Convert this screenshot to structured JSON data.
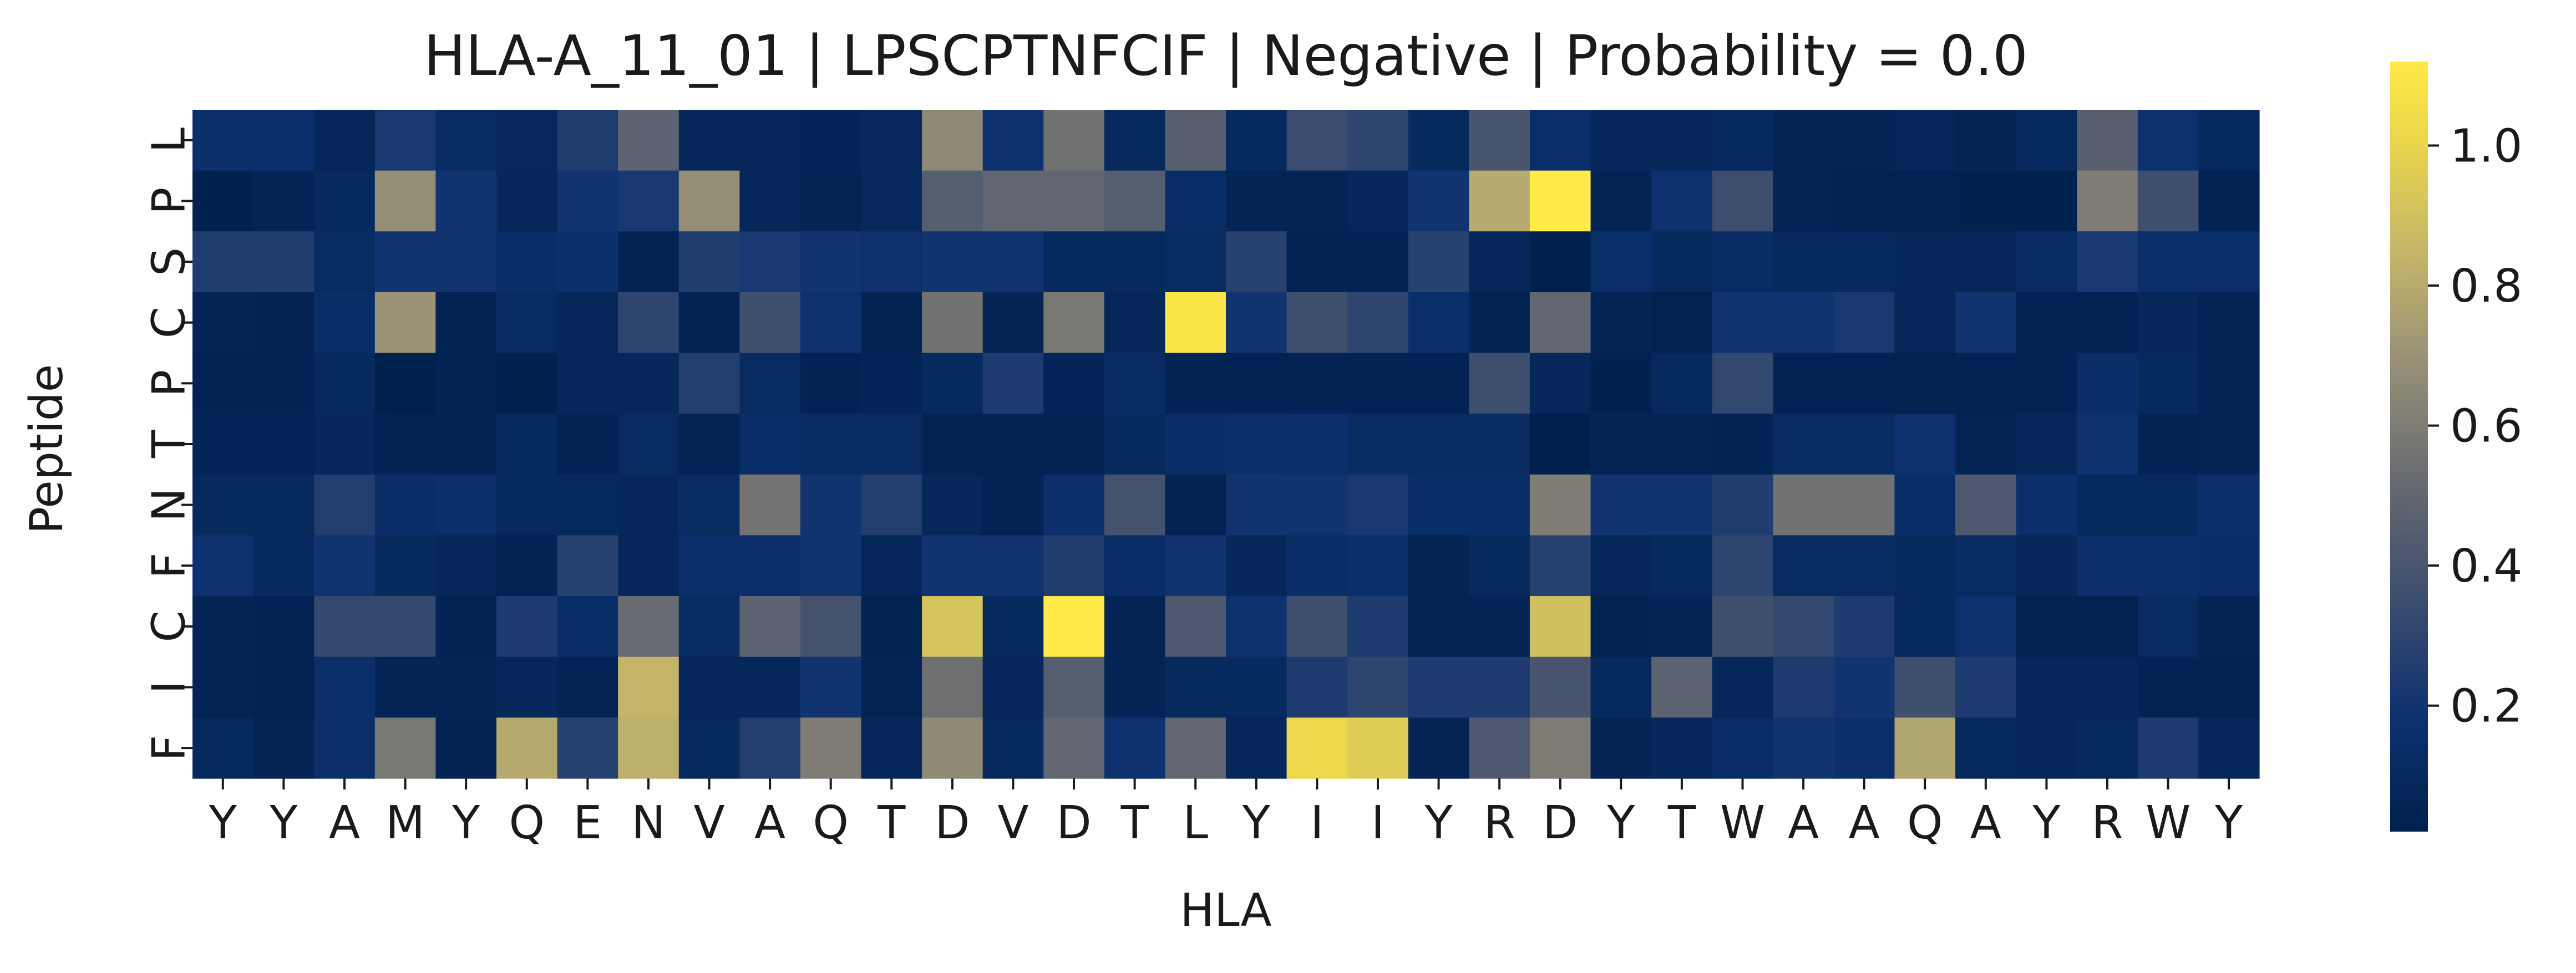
{
  "chart_data": {
    "type": "heatmap",
    "title": "HLA-A_11_01 | LPSCPTNFCIF | Negative | Probability = 0.0",
    "xlabel": "HLA",
    "ylabel": "Peptide",
    "x_categories": [
      "Y",
      "Y",
      "A",
      "M",
      "Y",
      "Q",
      "E",
      "N",
      "V",
      "A",
      "Q",
      "T",
      "D",
      "V",
      "D",
      "T",
      "L",
      "Y",
      "I",
      "I",
      "Y",
      "R",
      "D",
      "Y",
      "T",
      "W",
      "A",
      "A",
      "Q",
      "A",
      "Y",
      "R",
      "W",
      "Y"
    ],
    "y_categories": [
      "L",
      "P",
      "S",
      "C",
      "P",
      "T",
      "N",
      "F",
      "C",
      "I",
      "F"
    ],
    "colormap": "cividis",
    "vmin": 0.02,
    "vmax": 1.12,
    "colorbar_ticks": [
      {
        "value": 0.2,
        "label": "0.2"
      },
      {
        "value": 0.4,
        "label": "0.4"
      },
      {
        "value": 0.6,
        "label": "0.6"
      },
      {
        "value": 0.8,
        "label": "0.8"
      },
      {
        "value": 1.0,
        "label": "1.0"
      }
    ],
    "values": [
      [
        0.17,
        0.17,
        0.08,
        0.22,
        0.12,
        0.09,
        0.25,
        0.48,
        0.08,
        0.08,
        0.07,
        0.09,
        0.66,
        0.18,
        0.55,
        0.1,
        0.46,
        0.1,
        0.34,
        0.3,
        0.1,
        0.4,
        0.15,
        0.08,
        0.08,
        0.1,
        0.06,
        0.06,
        0.08,
        0.06,
        0.1,
        0.46,
        0.18,
        0.1
      ],
      [
        0.03,
        0.06,
        0.1,
        0.68,
        0.2,
        0.08,
        0.2,
        0.22,
        0.68,
        0.08,
        0.06,
        0.09,
        0.45,
        0.5,
        0.5,
        0.45,
        0.14,
        0.06,
        0.06,
        0.08,
        0.2,
        0.8,
        1.12,
        0.06,
        0.18,
        0.35,
        0.06,
        0.04,
        0.04,
        0.03,
        0.03,
        0.6,
        0.36,
        0.05
      ],
      [
        0.25,
        0.25,
        0.12,
        0.2,
        0.2,
        0.14,
        0.17,
        0.05,
        0.25,
        0.22,
        0.2,
        0.18,
        0.2,
        0.2,
        0.1,
        0.1,
        0.12,
        0.28,
        0.05,
        0.05,
        0.28,
        0.08,
        0.02,
        0.15,
        0.1,
        0.12,
        0.1,
        0.1,
        0.08,
        0.08,
        0.12,
        0.22,
        0.15,
        0.16
      ],
      [
        0.06,
        0.05,
        0.14,
        0.7,
        0.05,
        0.12,
        0.08,
        0.3,
        0.05,
        0.36,
        0.18,
        0.05,
        0.55,
        0.06,
        0.58,
        0.08,
        1.1,
        0.2,
        0.36,
        0.3,
        0.16,
        0.05,
        0.5,
        0.06,
        0.04,
        0.2,
        0.2,
        0.22,
        0.08,
        0.2,
        0.05,
        0.05,
        0.08,
        0.06
      ],
      [
        0.05,
        0.05,
        0.1,
        0.02,
        0.05,
        0.03,
        0.08,
        0.08,
        0.26,
        0.12,
        0.05,
        0.07,
        0.1,
        0.24,
        0.07,
        0.12,
        0.05,
        0.05,
        0.05,
        0.05,
        0.05,
        0.35,
        0.08,
        0.03,
        0.1,
        0.32,
        0.05,
        0.05,
        0.04,
        0.05,
        0.05,
        0.14,
        0.1,
        0.06
      ],
      [
        0.07,
        0.07,
        0.08,
        0.05,
        0.05,
        0.1,
        0.05,
        0.11,
        0.06,
        0.14,
        0.12,
        0.12,
        0.05,
        0.05,
        0.05,
        0.1,
        0.14,
        0.16,
        0.17,
        0.12,
        0.12,
        0.12,
        0.02,
        0.06,
        0.06,
        0.05,
        0.12,
        0.12,
        0.18,
        0.06,
        0.08,
        0.18,
        0.05,
        0.06
      ],
      [
        0.1,
        0.1,
        0.26,
        0.14,
        0.16,
        0.1,
        0.1,
        0.08,
        0.12,
        0.56,
        0.2,
        0.26,
        0.08,
        0.05,
        0.16,
        0.38,
        0.05,
        0.2,
        0.2,
        0.22,
        0.14,
        0.14,
        0.6,
        0.2,
        0.2,
        0.25,
        0.55,
        0.55,
        0.14,
        0.42,
        0.16,
        0.1,
        0.1,
        0.16
      ],
      [
        0.18,
        0.1,
        0.2,
        0.1,
        0.08,
        0.05,
        0.28,
        0.08,
        0.16,
        0.16,
        0.2,
        0.08,
        0.2,
        0.2,
        0.25,
        0.14,
        0.2,
        0.08,
        0.14,
        0.16,
        0.06,
        0.1,
        0.28,
        0.08,
        0.1,
        0.3,
        0.12,
        0.12,
        0.1,
        0.12,
        0.08,
        0.16,
        0.16,
        0.14
      ],
      [
        0.06,
        0.05,
        0.32,
        0.32,
        0.05,
        0.24,
        0.14,
        0.52,
        0.12,
        0.48,
        0.38,
        0.05,
        0.92,
        0.1,
        1.12,
        0.06,
        0.42,
        0.18,
        0.36,
        0.24,
        0.06,
        0.06,
        0.9,
        0.05,
        0.06,
        0.36,
        0.32,
        0.24,
        0.1,
        0.18,
        0.04,
        0.04,
        0.12,
        0.06
      ],
      [
        0.06,
        0.05,
        0.16,
        0.06,
        0.06,
        0.08,
        0.06,
        0.84,
        0.08,
        0.08,
        0.2,
        0.06,
        0.54,
        0.08,
        0.45,
        0.06,
        0.1,
        0.1,
        0.24,
        0.3,
        0.24,
        0.24,
        0.4,
        0.1,
        0.48,
        0.08,
        0.24,
        0.2,
        0.36,
        0.24,
        0.08,
        0.08,
        0.05,
        0.04
      ],
      [
        0.1,
        0.06,
        0.16,
        0.58,
        0.05,
        0.8,
        0.28,
        0.82,
        0.1,
        0.26,
        0.6,
        0.08,
        0.66,
        0.1,
        0.5,
        0.18,
        0.5,
        0.08,
        1.02,
        0.96,
        0.06,
        0.42,
        0.6,
        0.06,
        0.08,
        0.14,
        0.2,
        0.16,
        0.78,
        0.1,
        0.08,
        0.1,
        0.24,
        0.08
      ]
    ]
  }
}
